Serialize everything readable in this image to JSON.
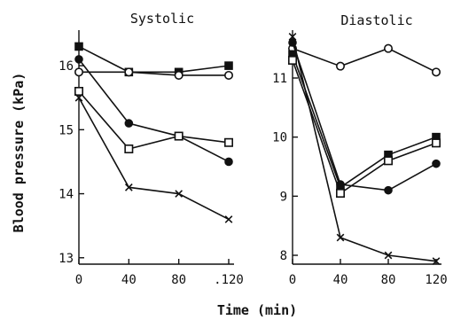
{
  "chart_data": [
    {
      "type": "line",
      "title": "Systolic",
      "x": [
        0,
        40,
        80,
        120
      ],
      "x_tick_labels": [
        "0",
        "40",
        "80",
        ".120"
      ],
      "y_ticks": [
        13,
        14,
        15,
        16
      ],
      "y_tick_labels": [
        "13",
        "14",
        "15",
        "16"
      ],
      "xlim": [
        0,
        120
      ],
      "ylim": [
        12.9,
        16.5
      ],
      "series": [
        {
          "marker": "filled-square",
          "values": [
            16.3,
            15.9,
            15.9,
            16.0
          ]
        },
        {
          "marker": "open-circle",
          "values": [
            15.9,
            15.9,
            15.85,
            15.85
          ]
        },
        {
          "marker": "filled-circle",
          "values": [
            16.1,
            15.1,
            14.9,
            14.5
          ]
        },
        {
          "marker": "open-square",
          "values": [
            15.6,
            14.7,
            14.9,
            14.8
          ]
        },
        {
          "marker": "cross",
          "values": [
            15.5,
            14.1,
            14.0,
            13.6
          ]
        }
      ]
    },
    {
      "type": "line",
      "title": "Diastolic",
      "x": [
        0,
        40,
        80,
        120
      ],
      "x_tick_labels": [
        "0",
        "40",
        "80",
        "120"
      ],
      "y_ticks": [
        8,
        9,
        10,
        11
      ],
      "y_tick_labels": [
        "8",
        "9",
        "10",
        "11"
      ],
      "xlim": [
        0,
        120
      ],
      "ylim": [
        7.85,
        11.75
      ],
      "series": [
        {
          "marker": "open-circle",
          "values": [
            11.5,
            11.2,
            11.5,
            11.1
          ]
        },
        {
          "marker": "filled-circle",
          "values": [
            11.6,
            9.2,
            9.1,
            9.55
          ]
        },
        {
          "marker": "filled-square",
          "values": [
            11.4,
            9.15,
            9.7,
            10.0
          ]
        },
        {
          "marker": "open-square",
          "values": [
            11.3,
            9.05,
            9.6,
            9.9
          ]
        },
        {
          "marker": "cross",
          "values": [
            11.7,
            8.3,
            8.0,
            7.9
          ]
        }
      ]
    }
  ],
  "shared": {
    "xlabel": "Time (min)",
    "ylabel": "Blood pressure (kPa)"
  }
}
